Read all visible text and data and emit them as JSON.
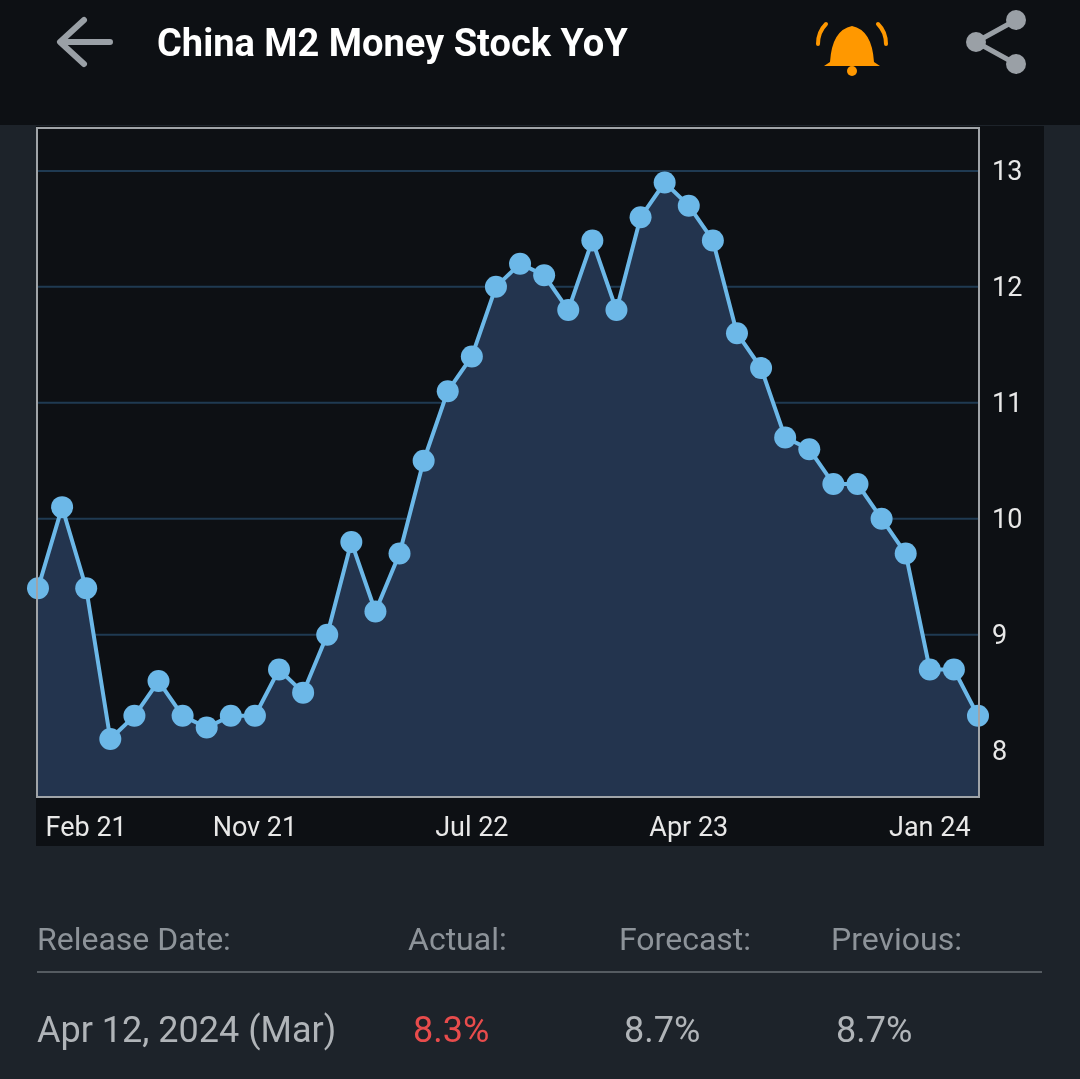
{
  "chart_data": {
    "type": "area",
    "title": "China M2 Money Stock YoY",
    "categories": [
      null,
      null,
      "Feb 21",
      null,
      null,
      null,
      null,
      null,
      null,
      "Nov 21",
      null,
      null,
      null,
      null,
      null,
      null,
      null,
      null,
      "Jul 22",
      null,
      null,
      null,
      null,
      null,
      null,
      null,
      null,
      "Apr 23",
      null,
      null,
      null,
      null,
      null,
      null,
      null,
      null,
      null,
      "Jan 24",
      null,
      null
    ],
    "series": [
      {
        "color": "#6cb8e8",
        "values": [
          9.4,
          10.1,
          9.4,
          8.1,
          8.3,
          8.6,
          8.3,
          8.2,
          8.3,
          8.3,
          8.7,
          8.5,
          9.0,
          9.8,
          9.2,
          9.7,
          10.5,
          11.1,
          11.4,
          12.0,
          12.2,
          12.1,
          11.8,
          12.4,
          11.8,
          12.6,
          12.9,
          12.7,
          12.4,
          11.6,
          11.3,
          10.7,
          10.6,
          10.3,
          10.3,
          10.0,
          9.7,
          8.7,
          8.7,
          8.3
        ]
      }
    ],
    "ylim": [
      7.6,
      13.37
    ],
    "yticks": [
      8,
      9,
      10,
      11,
      12,
      13
    ],
    "grid": "y",
    "marker": "circle",
    "annotations": [
      "Release Date:",
      "Actual:",
      "Forecast:",
      "Previous:",
      "Apr 12, 2024 (Mar)",
      "8.3%",
      "8.7%",
      "8.7%"
    ]
  }
}
